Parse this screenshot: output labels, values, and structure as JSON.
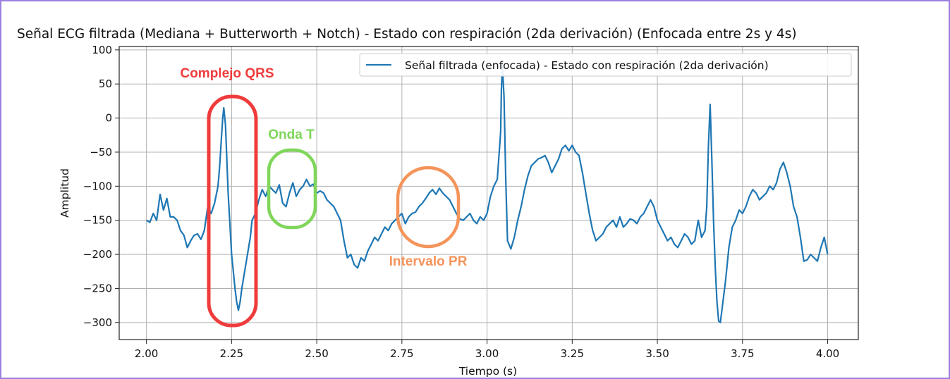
{
  "chart_data": {
    "type": "line",
    "title": "Señal ECG filtrada (Mediana + Butterworth + Notch) - Estado con respiración (2da derivación) (Enfocada entre 2s y 4s)",
    "xlabel": "Tiempo (s)",
    "ylabel": "Amplitud",
    "xlim": [
      1.92,
      4.09
    ],
    "ylim": [
      -325,
      105
    ],
    "xticks": [
      "2.00",
      "2.25",
      "2.50",
      "2.75",
      "3.00",
      "3.25",
      "3.50",
      "3.75",
      "4.00"
    ],
    "yticks": [
      "100",
      "50",
      "0",
      "−50",
      "−100",
      "−150",
      "−200",
      "−250",
      "−300"
    ],
    "grid": true,
    "legend_position": "upper-right",
    "series": [
      {
        "name": "Señal filtrada (enfocada) - Estado con respiración (2da derivación)",
        "color": "#1f77b4",
        "points": [
          [
            2.0,
            -150
          ],
          [
            2.01,
            -153
          ],
          [
            2.02,
            -140
          ],
          [
            2.03,
            -150
          ],
          [
            2.04,
            -112
          ],
          [
            2.05,
            -135
          ],
          [
            2.06,
            -118
          ],
          [
            2.07,
            -145
          ],
          [
            2.08,
            -145
          ],
          [
            2.09,
            -150
          ],
          [
            2.1,
            -165
          ],
          [
            2.11,
            -172
          ],
          [
            2.12,
            -190
          ],
          [
            2.13,
            -180
          ],
          [
            2.14,
            -172
          ],
          [
            2.15,
            -170
          ],
          [
            2.16,
            -178
          ],
          [
            2.17,
            -165
          ],
          [
            2.18,
            -130
          ],
          [
            2.19,
            -140
          ],
          [
            2.2,
            -125
          ],
          [
            2.21,
            -100
          ],
          [
            2.215,
            -70
          ],
          [
            2.22,
            -30
          ],
          [
            2.224,
            0
          ],
          [
            2.227,
            15
          ],
          [
            2.232,
            -10
          ],
          [
            2.24,
            -110
          ],
          [
            2.25,
            -200
          ],
          [
            2.26,
            -250
          ],
          [
            2.265,
            -270
          ],
          [
            2.27,
            -282
          ],
          [
            2.275,
            -270
          ],
          [
            2.28,
            -250
          ],
          [
            2.29,
            -220
          ],
          [
            2.3,
            -190
          ],
          [
            2.305,
            -175
          ],
          [
            2.31,
            -150
          ],
          [
            2.32,
            -140
          ],
          [
            2.33,
            -120
          ],
          [
            2.34,
            -105
          ],
          [
            2.35,
            -115
          ],
          [
            2.36,
            -100
          ],
          [
            2.37,
            -105
          ],
          [
            2.38,
            -110
          ],
          [
            2.39,
            -98
          ],
          [
            2.4,
            -125
          ],
          [
            2.41,
            -130
          ],
          [
            2.42,
            -110
          ],
          [
            2.43,
            -95
          ],
          [
            2.44,
            -115
          ],
          [
            2.45,
            -105
          ],
          [
            2.46,
            -100
          ],
          [
            2.47,
            -90
          ],
          [
            2.48,
            -100
          ],
          [
            2.49,
            -97
          ],
          [
            2.5,
            -110
          ],
          [
            2.51,
            -107
          ],
          [
            2.52,
            -110
          ],
          [
            2.53,
            -120
          ],
          [
            2.54,
            -125
          ],
          [
            2.55,
            -130
          ],
          [
            2.56,
            -140
          ],
          [
            2.57,
            -150
          ],
          [
            2.58,
            -180
          ],
          [
            2.59,
            -205
          ],
          [
            2.6,
            -200
          ],
          [
            2.61,
            -215
          ],
          [
            2.62,
            -220
          ],
          [
            2.63,
            -205
          ],
          [
            2.64,
            -210
          ],
          [
            2.65,
            -195
          ],
          [
            2.66,
            -185
          ],
          [
            2.67,
            -175
          ],
          [
            2.68,
            -180
          ],
          [
            2.69,
            -170
          ],
          [
            2.7,
            -160
          ],
          [
            2.71,
            -165
          ],
          [
            2.72,
            -155
          ],
          [
            2.73,
            -150
          ],
          [
            2.74,
            -145
          ],
          [
            2.75,
            -140
          ],
          [
            2.76,
            -155
          ],
          [
            2.77,
            -145
          ],
          [
            2.78,
            -140
          ],
          [
            2.79,
            -138
          ],
          [
            2.8,
            -130
          ],
          [
            2.81,
            -125
          ],
          [
            2.82,
            -118
          ],
          [
            2.83,
            -110
          ],
          [
            2.84,
            -105
          ],
          [
            2.85,
            -112
          ],
          [
            2.86,
            -103
          ],
          [
            2.87,
            -110
          ],
          [
            2.88,
            -115
          ],
          [
            2.89,
            -120
          ],
          [
            2.9,
            -130
          ],
          [
            2.91,
            -140
          ],
          [
            2.92,
            -148
          ],
          [
            2.93,
            -150
          ],
          [
            2.94,
            -145
          ],
          [
            2.95,
            -140
          ],
          [
            2.96,
            -150
          ],
          [
            2.97,
            -155
          ],
          [
            2.98,
            -145
          ],
          [
            2.99,
            -150
          ],
          [
            3.0,
            -140
          ],
          [
            3.01,
            -115
          ],
          [
            3.02,
            -100
          ],
          [
            3.03,
            -90
          ],
          [
            3.04,
            -20
          ],
          [
            3.042,
            40
          ],
          [
            3.045,
            78
          ],
          [
            3.05,
            30
          ],
          [
            3.055,
            -90
          ],
          [
            3.06,
            -180
          ],
          [
            3.07,
            -192
          ],
          [
            3.08,
            -175
          ],
          [
            3.09,
            -150
          ],
          [
            3.1,
            -130
          ],
          [
            3.11,
            -105
          ],
          [
            3.12,
            -85
          ],
          [
            3.13,
            -70
          ],
          [
            3.14,
            -65
          ],
          [
            3.15,
            -60
          ],
          [
            3.16,
            -58
          ],
          [
            3.17,
            -55
          ],
          [
            3.18,
            -65
          ],
          [
            3.19,
            -80
          ],
          [
            3.2,
            -70
          ],
          [
            3.21,
            -60
          ],
          [
            3.22,
            -45
          ],
          [
            3.23,
            -40
          ],
          [
            3.24,
            -48
          ],
          [
            3.25,
            -40
          ],
          [
            3.26,
            -50
          ],
          [
            3.27,
            -55
          ],
          [
            3.28,
            -80
          ],
          [
            3.29,
            -110
          ],
          [
            3.3,
            -140
          ],
          [
            3.31,
            -165
          ],
          [
            3.32,
            -180
          ],
          [
            3.33,
            -175
          ],
          [
            3.34,
            -170
          ],
          [
            3.35,
            -160
          ],
          [
            3.36,
            -155
          ],
          [
            3.37,
            -150
          ],
          [
            3.38,
            -160
          ],
          [
            3.39,
            -145
          ],
          [
            3.4,
            -160
          ],
          [
            3.41,
            -155
          ],
          [
            3.42,
            -148
          ],
          [
            3.43,
            -150
          ],
          [
            3.44,
            -155
          ],
          [
            3.45,
            -145
          ],
          [
            3.46,
            -140
          ],
          [
            3.47,
            -130
          ],
          [
            3.48,
            -120
          ],
          [
            3.49,
            -130
          ],
          [
            3.5,
            -150
          ],
          [
            3.51,
            -160
          ],
          [
            3.52,
            -170
          ],
          [
            3.53,
            -180
          ],
          [
            3.54,
            -175
          ],
          [
            3.55,
            -185
          ],
          [
            3.56,
            -190
          ],
          [
            3.57,
            -180
          ],
          [
            3.58,
            -170
          ],
          [
            3.59,
            -175
          ],
          [
            3.6,
            -185
          ],
          [
            3.61,
            -180
          ],
          [
            3.62,
            -150
          ],
          [
            3.63,
            -175
          ],
          [
            3.64,
            -165
          ],
          [
            3.645,
            -130
          ],
          [
            3.65,
            -40
          ],
          [
            3.655,
            20
          ],
          [
            3.66,
            -60
          ],
          [
            3.665,
            -150
          ],
          [
            3.67,
            -220
          ],
          [
            3.675,
            -270
          ],
          [
            3.68,
            -298
          ],
          [
            3.685,
            -300
          ],
          [
            3.69,
            -280
          ],
          [
            3.7,
            -240
          ],
          [
            3.71,
            -190
          ],
          [
            3.72,
            -160
          ],
          [
            3.73,
            -150
          ],
          [
            3.74,
            -135
          ],
          [
            3.75,
            -140
          ],
          [
            3.76,
            -130
          ],
          [
            3.77,
            -115
          ],
          [
            3.78,
            -105
          ],
          [
            3.79,
            -110
          ],
          [
            3.8,
            -120
          ],
          [
            3.81,
            -115
          ],
          [
            3.82,
            -110
          ],
          [
            3.83,
            -100
          ],
          [
            3.84,
            -105
          ],
          [
            3.85,
            -95
          ],
          [
            3.86,
            -75
          ],
          [
            3.87,
            -65
          ],
          [
            3.88,
            -80
          ],
          [
            3.89,
            -100
          ],
          [
            3.9,
            -130
          ],
          [
            3.91,
            -145
          ],
          [
            3.92,
            -175
          ],
          [
            3.93,
            -210
          ],
          [
            3.94,
            -208
          ],
          [
            3.95,
            -200
          ],
          [
            3.96,
            -205
          ],
          [
            3.97,
            -210
          ],
          [
            3.98,
            -190
          ],
          [
            3.99,
            -175
          ],
          [
            4.0,
            -200
          ]
        ]
      }
    ],
    "annotations": [
      {
        "label": "Complejo QRS",
        "color": "#ef3b3b"
      },
      {
        "label": "Onda T",
        "color": "#7fd65a"
      },
      {
        "label": "Intervalo PR",
        "color": "#f4945a"
      }
    ]
  }
}
